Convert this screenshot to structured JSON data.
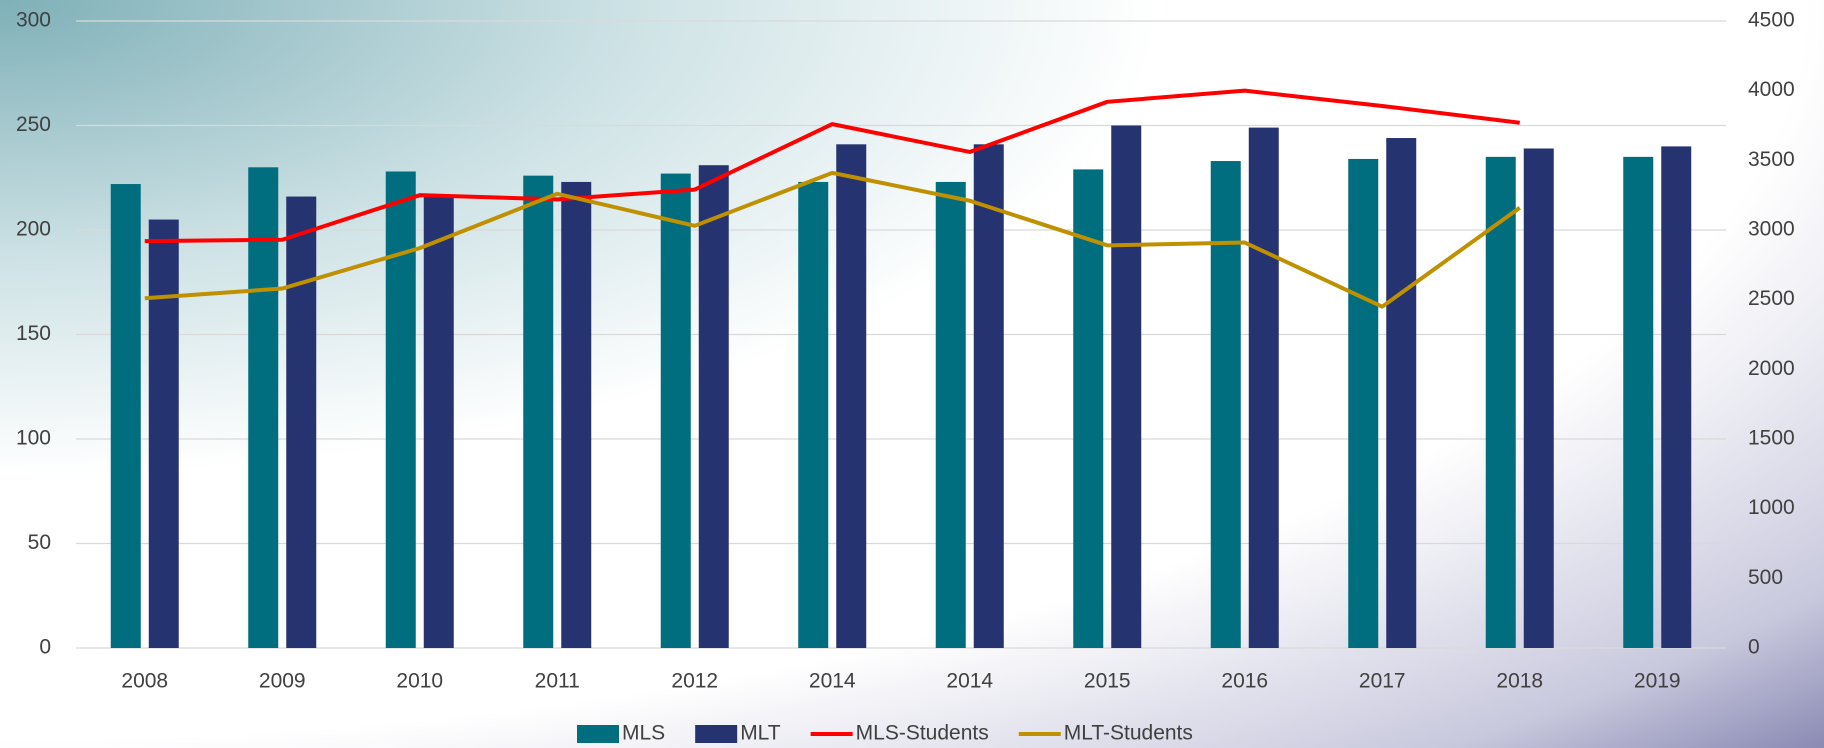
{
  "chart_data": {
    "type": "bar-line",
    "categories": [
      "2008",
      "2009",
      "2010",
      "2011",
      "2012",
      "2014",
      "2014",
      "2015",
      "2016",
      "2017",
      "2018",
      "2019"
    ],
    "series": [
      {
        "name": "MLS",
        "type": "bar",
        "color": "#006e7f",
        "values": [
          222,
          230,
          228,
          226,
          227,
          223,
          223,
          229,
          233,
          234,
          235,
          235
        ]
      },
      {
        "name": "MLT",
        "type": "bar",
        "color": "#253370",
        "values": [
          205,
          216,
          217,
          223,
          231,
          241,
          241,
          250,
          249,
          244,
          239,
          240
        ]
      },
      {
        "name": "MLS-Students",
        "type": "line",
        "axis": "y2",
        "color": "#ff0000",
        "values": [
          2920,
          2930,
          3250,
          3220,
          3290,
          3760,
          3560,
          3920,
          4000,
          3890,
          3770,
          null
        ]
      },
      {
        "name": "MLT-Students",
        "type": "line",
        "axis": "y2",
        "color": "#bf9000",
        "values": [
          2510,
          2580,
          2870,
          3260,
          3030,
          3410,
          3210,
          2890,
          2910,
          2450,
          3160,
          null
        ]
      }
    ],
    "ylim": [
      0,
      300
    ],
    "yticks": [
      0,
      50,
      100,
      150,
      200,
      250,
      300
    ],
    "y2lim": [
      0,
      4500
    ],
    "y2ticks": [
      0,
      500,
      1000,
      1500,
      2000,
      2500,
      3000,
      3500,
      4000,
      4500
    ],
    "grid": true,
    "legend": "bottom"
  }
}
